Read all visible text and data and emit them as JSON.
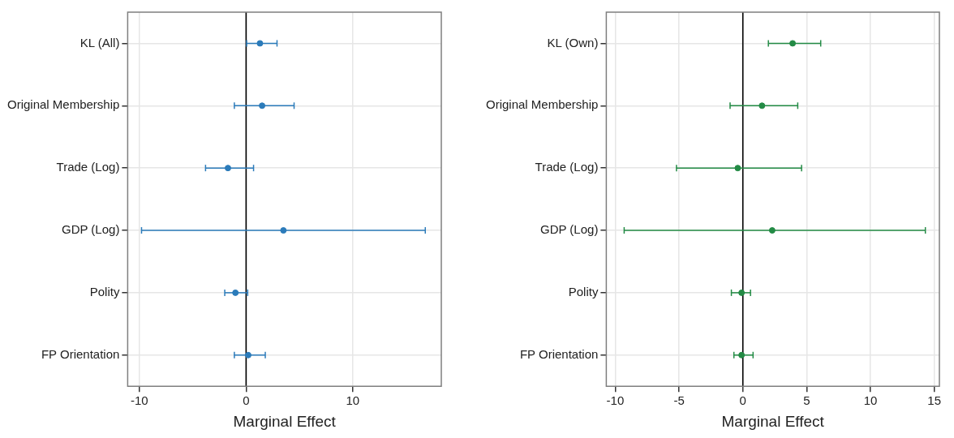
{
  "chart_data": [
    {
      "type": "scatter",
      "orientation": "horizontal",
      "xlabel": "Marginal Effect",
      "categories": [
        "KL (All)",
        "Original Membership",
        "Trade (Log)",
        "GDP (Log)",
        "Polity",
        "FP Orientation"
      ],
      "series": [
        {
          "color": "#2b7bba",
          "values": [
            1.3,
            1.5,
            -1.7,
            3.5,
            -1.0,
            0.2
          ],
          "errors": [
            [
              0.05,
              2.9
            ],
            [
              -1.1,
              4.5
            ],
            [
              -3.8,
              0.7
            ],
            [
              -9.8,
              16.8
            ],
            [
              -2.0,
              0.15
            ],
            [
              -1.1,
              1.8
            ]
          ]
        }
      ],
      "xlim": [
        -11.1,
        18.3
      ],
      "xticks": [
        -10,
        0,
        10
      ],
      "grid": true,
      "legend": false,
      "marker": "circle",
      "ref_lines": [
        {
          "axis": "x",
          "value": 0,
          "color": "#000000"
        }
      ]
    },
    {
      "type": "scatter",
      "orientation": "horizontal",
      "xlabel": "Marginal Effect",
      "categories": [
        "KL (Own)",
        "Original Membership",
        "Trade (Log)",
        "GDP (Log)",
        "Polity",
        "FP Orientation"
      ],
      "series": [
        {
          "color": "#238b45",
          "values": [
            3.9,
            1.5,
            -0.4,
            2.3,
            -0.1,
            -0.1
          ],
          "errors": [
            [
              2.0,
              6.1
            ],
            [
              -1.0,
              4.3
            ],
            [
              -5.2,
              4.6
            ],
            [
              -9.3,
              14.3
            ],
            [
              -0.9,
              0.6
            ],
            [
              -0.7,
              0.8
            ]
          ]
        }
      ],
      "xlim": [
        -10.7,
        15.4
      ],
      "xticks": [
        -10,
        -5,
        0,
        5,
        10,
        15
      ],
      "grid": true,
      "legend": false,
      "marker": "circle",
      "ref_lines": [
        {
          "axis": "x",
          "value": 0,
          "color": "#000000"
        }
      ]
    }
  ]
}
